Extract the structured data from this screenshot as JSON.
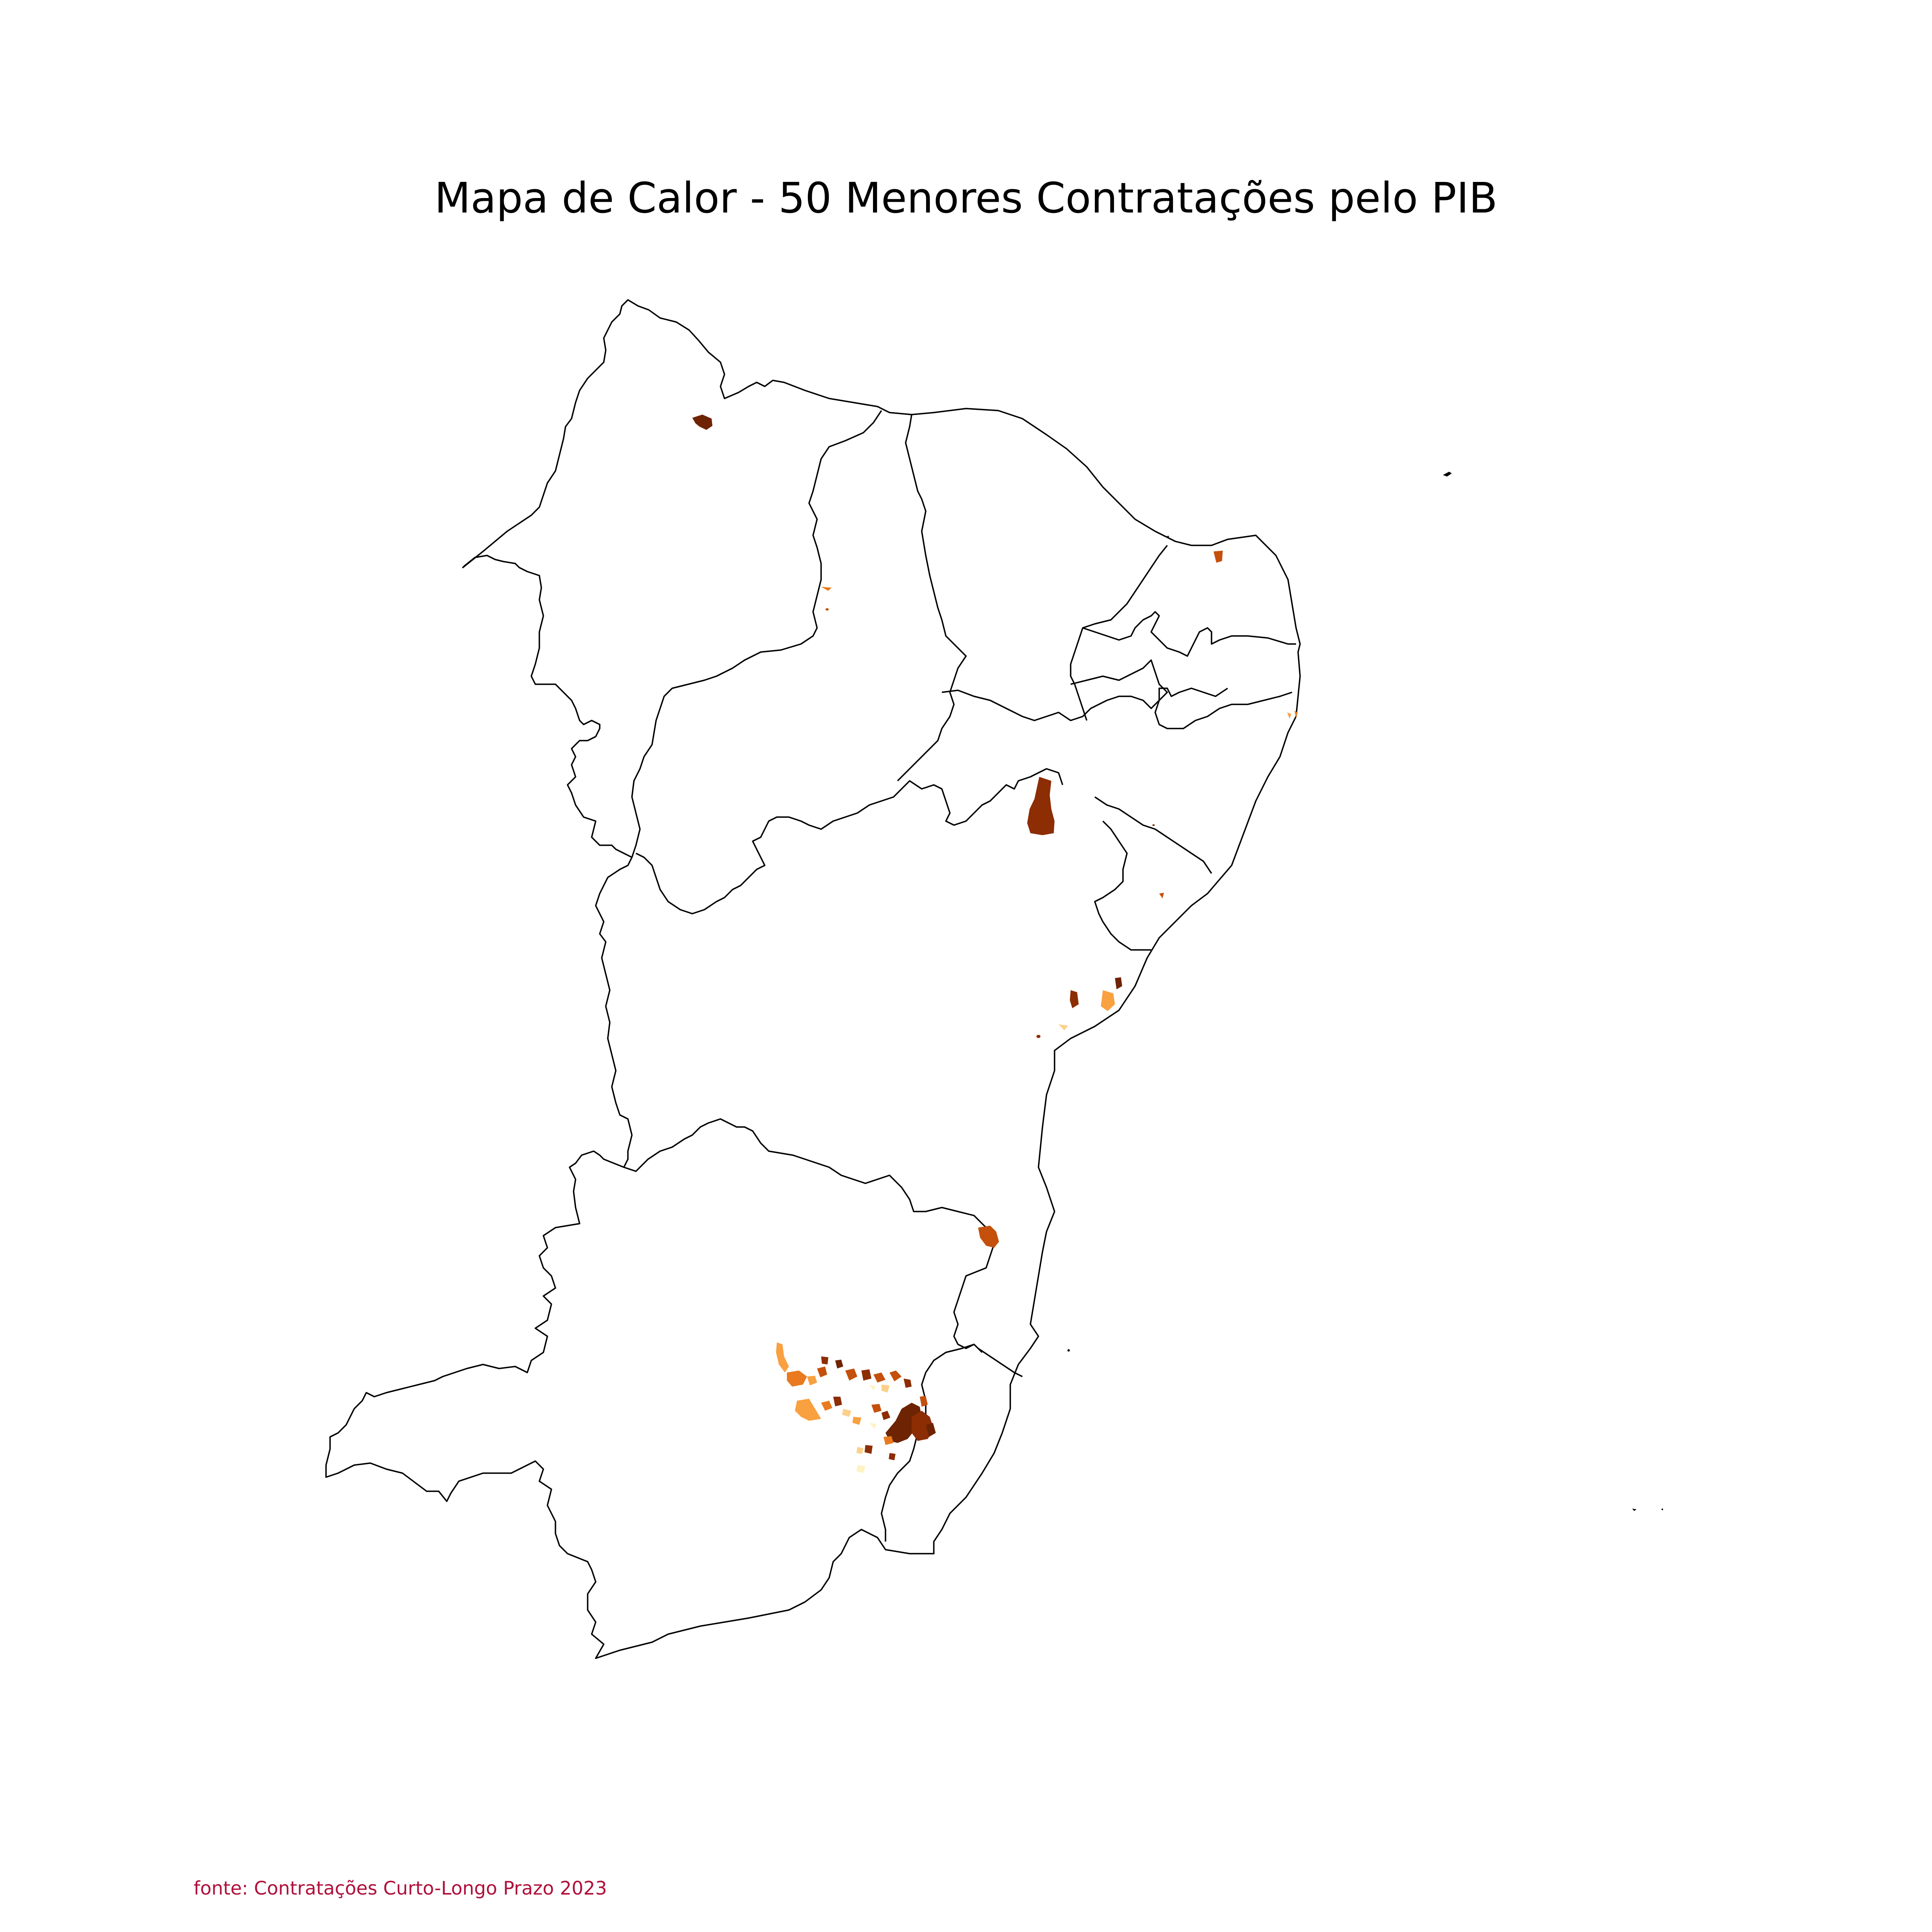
{
  "title": "Mapa de Calor - 50 Menores Contratações pelo PIB",
  "source": "fonte: Contratações Curto-Longo Prazo 2023",
  "colors": {
    "background": "#ffffff",
    "boundary": "#000000",
    "source_text": "#b0103a",
    "heat_scale": [
      "#fff3c4",
      "#fdd08a",
      "#f9a040",
      "#e97a1f",
      "#c4500c",
      "#8c2d04",
      "#6e2302"
    ]
  },
  "chart_data": {
    "type": "choropleth",
    "title": "Mapa de Calor - 50 Menores Contratações pelo PIB",
    "legend": "none",
    "axes": "off",
    "grid": false
  }
}
